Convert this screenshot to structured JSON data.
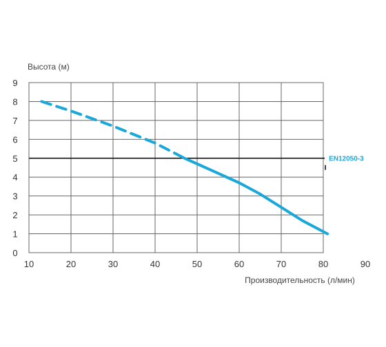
{
  "chart_data": {
    "type": "line",
    "ylabel": "Высота (м)",
    "xlabel": "Производительность (л/мин)",
    "xlim": [
      10,
      90
    ],
    "ylim": [
      0,
      9
    ],
    "x_ticks": [
      "10",
      "20",
      "30",
      "40",
      "50",
      "60",
      "70",
      "80",
      "90"
    ],
    "y_ticks": [
      "0",
      "1",
      "2",
      "3",
      "4",
      "5",
      "6",
      "7",
      "8",
      "9"
    ],
    "grid": true,
    "series": [
      {
        "name": "",
        "style": "dashed",
        "color": "#1aa7d9",
        "x": [
          13,
          20,
          30,
          40,
          47
        ],
        "y": [
          8.0,
          7.5,
          6.7,
          5.8,
          5.0
        ]
      },
      {
        "name": "",
        "style": "solid",
        "color": "#1aa7d9",
        "x": [
          47,
          50,
          55,
          60,
          65,
          70,
          75,
          81
        ],
        "y": [
          5.0,
          4.7,
          4.2,
          3.7,
          3.1,
          2.4,
          1.7,
          1.0
        ]
      }
    ],
    "reference_line": {
      "label": "EN12050-3",
      "y": 5,
      "x_range": [
        10,
        81
      ],
      "color": "#111111"
    }
  }
}
